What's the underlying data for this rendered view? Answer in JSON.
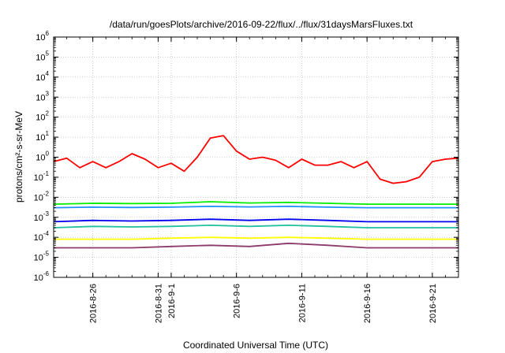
{
  "chart_data": {
    "type": "line",
    "title": "/data/run/goesPlots/archive/2016-09-22/flux/../flux/31daysMarsFluxes.txt",
    "xlabel": "Coordinated Universal Time (UTC)",
    "ylabel": "protons/cm²-s-sr-MeV",
    "y_scale": "log",
    "ylim": [
      1e-06,
      1000000.0
    ],
    "xlim": [
      "2016-08-23",
      "2016-09-23"
    ],
    "grid": true,
    "legend": "none",
    "y_ticks": [
      {
        "base": "10",
        "exp": "-6"
      },
      {
        "base": "10",
        "exp": "-5"
      },
      {
        "base": "10",
        "exp": "-4"
      },
      {
        "base": "10",
        "exp": "-3"
      },
      {
        "base": "10",
        "exp": "-2"
      },
      {
        "base": "10",
        "exp": "-1"
      },
      {
        "base": "10",
        "exp": "0"
      },
      {
        "base": "10",
        "exp": "1"
      },
      {
        "base": "10",
        "exp": "2"
      },
      {
        "base": "10",
        "exp": "3"
      },
      {
        "base": "10",
        "exp": "4"
      },
      {
        "base": "10",
        "exp": "5"
      },
      {
        "base": "10",
        "exp": "6"
      }
    ],
    "x_ticks": [
      "2016-8-26",
      "2016-8-31",
      "2016-9-1",
      "2016-9-6",
      "2016-9-11",
      "2016-9-16",
      "2016-9-21"
    ],
    "series": [
      {
        "color": "#ff0000",
        "x": [
          "2016-08-23",
          "2016-08-24",
          "2016-08-25",
          "2016-08-26",
          "2016-08-27",
          "2016-08-28",
          "2016-08-29",
          "2016-08-30",
          "2016-08-31",
          "2016-09-01",
          "2016-09-02",
          "2016-09-03",
          "2016-09-04",
          "2016-09-05",
          "2016-09-06",
          "2016-09-07",
          "2016-09-08",
          "2016-09-09",
          "2016-09-10",
          "2016-09-11",
          "2016-09-12",
          "2016-09-13",
          "2016-09-14",
          "2016-09-15",
          "2016-09-16",
          "2016-09-17",
          "2016-09-18",
          "2016-09-19",
          "2016-09-20",
          "2016-09-21",
          "2016-09-22",
          "2016-09-23"
        ],
        "values": [
          0.6,
          0.9,
          0.3,
          0.6,
          0.3,
          0.6,
          1.5,
          0.8,
          0.3,
          0.5,
          0.2,
          1.0,
          9.0,
          12.0,
          2.0,
          0.8,
          1.0,
          0.7,
          0.3,
          0.8,
          0.4,
          0.4,
          0.6,
          0.3,
          0.6,
          0.08,
          0.05,
          0.06,
          0.1,
          0.6,
          0.8,
          0.9
        ]
      },
      {
        "color": "#00ee00",
        "x": [
          "2016-08-23",
          "2016-08-26",
          "2016-08-29",
          "2016-09-01",
          "2016-09-04",
          "2016-09-07",
          "2016-09-10",
          "2016-09-13",
          "2016-09-16",
          "2016-09-19",
          "2016-09-23"
        ],
        "values": [
          0.0045,
          0.005,
          0.0048,
          0.005,
          0.006,
          0.0052,
          0.0055,
          0.005,
          0.0045,
          0.0045,
          0.0045
        ]
      },
      {
        "color": "#1e90ff",
        "x": [
          "2016-08-23",
          "2016-08-26",
          "2016-08-29",
          "2016-09-01",
          "2016-09-04",
          "2016-09-07",
          "2016-09-10",
          "2016-09-13",
          "2016-09-16",
          "2016-09-19",
          "2016-09-23"
        ],
        "values": [
          0.003,
          0.0032,
          0.0031,
          0.0032,
          0.0035,
          0.0033,
          0.0035,
          0.0032,
          0.003,
          0.003,
          0.003
        ]
      },
      {
        "color": "#0000ee",
        "x": [
          "2016-08-23",
          "2016-08-26",
          "2016-08-29",
          "2016-09-01",
          "2016-09-04",
          "2016-09-07",
          "2016-09-10",
          "2016-09-13",
          "2016-09-16",
          "2016-09-19",
          "2016-09-23"
        ],
        "values": [
          0.0006,
          0.0007,
          0.00065,
          0.0007,
          0.0008,
          0.0007,
          0.0008,
          0.0007,
          0.0006,
          0.0006,
          0.0006
        ]
      },
      {
        "color": "#20c0a0",
        "x": [
          "2016-08-23",
          "2016-08-26",
          "2016-08-29",
          "2016-09-01",
          "2016-09-04",
          "2016-09-07",
          "2016-09-10",
          "2016-09-13",
          "2016-09-16",
          "2016-09-19",
          "2016-09-23"
        ],
        "values": [
          0.0003,
          0.00035,
          0.00033,
          0.00035,
          0.0004,
          0.00035,
          0.0004,
          0.00035,
          0.0003,
          0.0003,
          0.0003
        ]
      },
      {
        "color": "#ffff00",
        "x": [
          "2016-08-23",
          "2016-08-26",
          "2016-08-29",
          "2016-09-01",
          "2016-09-04",
          "2016-09-07",
          "2016-09-10",
          "2016-09-13",
          "2016-09-16",
          "2016-09-19",
          "2016-09-23"
        ],
        "values": [
          8e-05,
          8e-05,
          8e-05,
          9e-05,
          0.0001,
          9e-05,
          0.0001,
          9e-05,
          8e-05,
          8e-05,
          8e-05
        ]
      },
      {
        "color": "#8b3a6b",
        "x": [
          "2016-08-23",
          "2016-08-26",
          "2016-08-29",
          "2016-09-01",
          "2016-09-04",
          "2016-09-07",
          "2016-09-10",
          "2016-09-13",
          "2016-09-16",
          "2016-09-19",
          "2016-09-23"
        ],
        "values": [
          3e-05,
          3e-05,
          3e-05,
          3.5e-05,
          4e-05,
          3.5e-05,
          5e-05,
          4e-05,
          3e-05,
          3e-05,
          3e-05
        ]
      }
    ]
  }
}
